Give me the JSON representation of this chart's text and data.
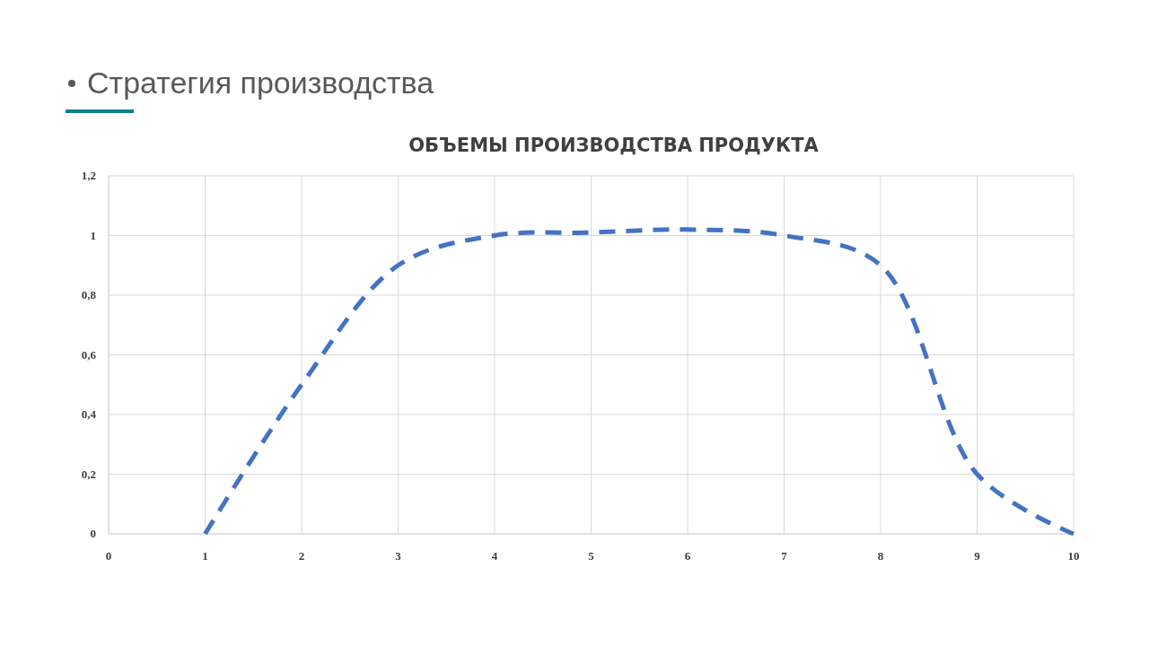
{
  "chart_data": {
    "type": "line",
    "title": "ОБЪЕМЫ ПРОИЗВОДСТВА ПРОДУКТА",
    "annotations": [
      "Стратегия производства"
    ],
    "x": [
      1,
      2,
      3,
      4,
      5,
      6,
      7,
      8,
      9,
      10
    ],
    "series": [
      {
        "color": "#4472c4",
        "values": [
          0,
          0.5,
          0.9,
          1.0,
          1.01,
          1.02,
          1.0,
          0.9,
          0.2,
          0
        ]
      }
    ],
    "xlim": [
      0,
      10
    ],
    "xticks": [
      0,
      1,
      2,
      3,
      4,
      5,
      6,
      7,
      8,
      9,
      10
    ],
    "ylim": [
      0,
      1.2
    ],
    "yticks": [
      0,
      {
        "value": 0.2,
        "label": "0,2"
      },
      {
        "value": 0.4,
        "label": "0,4"
      },
      {
        "value": 0.6,
        "label": "0,6"
      },
      {
        "value": 0.8,
        "label": "0,8"
      },
      1,
      {
        "value": 1.2,
        "label": "1,2"
      }
    ],
    "grid": true,
    "line_style": "dashed",
    "marker": "none"
  }
}
